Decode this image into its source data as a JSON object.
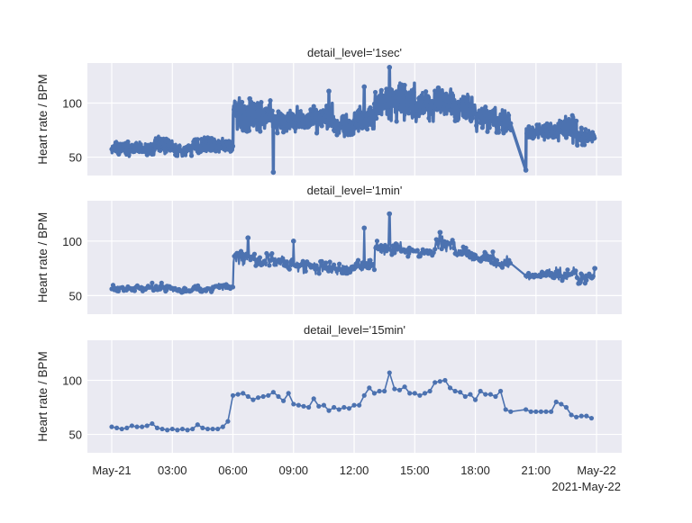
{
  "chart_data": [
    {
      "type": "line",
      "title": "detail_level='1sec'",
      "ylabel": "Heart rate / BPM",
      "ylim": [
        33,
        137
      ],
      "yticks": [
        "50",
        "100"
      ],
      "color": "#4c72b0",
      "band_hours": [
        "00:00",
        "01:00",
        "02:00",
        "03:00",
        "04:00",
        "05:00",
        "06:00",
        "07:00",
        "08:00",
        "09:00",
        "10:00",
        "11:00",
        "12:00",
        "13:00",
        "14:00",
        "15:00",
        "16:00",
        "17:00",
        "18:00",
        "19:00",
        "20:00",
        "21:00",
        "22:00",
        "23:00"
      ],
      "low": [
        50,
        51,
        52,
        50,
        52,
        53,
        70,
        73,
        70,
        70,
        70,
        68,
        72,
        80,
        80,
        80,
        85,
        78,
        72,
        65,
        62,
        65,
        62,
        60
      ],
      "high": [
        66,
        64,
        70,
        63,
        71,
        68,
        108,
        106,
        95,
        98,
        100,
        90,
        98,
        117,
        122,
        112,
        118,
        110,
        106,
        95,
        80,
        85,
        90,
        78
      ],
      "spikes": [
        {
          "x": "06:50",
          "y": 104
        },
        {
          "x": "08:00",
          "y": 36
        },
        {
          "x": "10:45",
          "y": 111
        },
        {
          "x": "13:45",
          "y": 133
        },
        {
          "x": "14:15",
          "y": 113
        },
        {
          "x": "16:10",
          "y": 114
        },
        {
          "x": "20:30",
          "y": 38
        },
        {
          "x": "12:30",
          "y": 115
        }
      ],
      "end": "23:55"
    },
    {
      "type": "line",
      "title": "detail_level='1min'",
      "ylabel": "Heart rate / BPM",
      "ylim": [
        33,
        137
      ],
      "yticks": [
        "50",
        "100"
      ],
      "color": "#4c72b0",
      "band_hours": [
        "00:00",
        "01:00",
        "02:00",
        "03:00",
        "04:00",
        "05:00",
        "06:00",
        "07:00",
        "08:00",
        "09:00",
        "10:00",
        "11:00",
        "12:00",
        "13:00",
        "14:00",
        "15:00",
        "16:00",
        "17:00",
        "18:00",
        "19:00",
        "20:00",
        "21:00",
        "22:00",
        "23:00"
      ],
      "low": [
        53,
        54,
        53,
        52,
        53,
        54,
        76,
        76,
        72,
        70,
        68,
        67,
        72,
        84,
        84,
        84,
        90,
        82,
        78,
        66,
        64,
        64,
        62,
        60
      ],
      "high": [
        60,
        60,
        62,
        58,
        60,
        62,
        95,
        90,
        88,
        84,
        82,
        80,
        86,
        102,
        100,
        96,
        105,
        96,
        92,
        88,
        72,
        76,
        80,
        72
      ],
      "spikes": [
        {
          "x": "06:45",
          "y": 103
        },
        {
          "x": "09:00",
          "y": 100
        },
        {
          "x": "13:45",
          "y": 125
        },
        {
          "x": "12:30",
          "y": 112
        },
        {
          "x": "16:15",
          "y": 108
        },
        {
          "x": "23:55",
          "y": 75
        }
      ],
      "end": "23:55"
    },
    {
      "type": "line",
      "title": "detail_level='15min'",
      "ylabel": "Heart rate / BPM",
      "ylim": [
        33,
        137
      ],
      "yticks": [
        "50",
        "100"
      ],
      "color": "#4c72b0",
      "x": [
        "00:00",
        "00:15",
        "00:30",
        "00:45",
        "01:00",
        "01:15",
        "01:30",
        "01:45",
        "02:00",
        "02:15",
        "02:30",
        "02:45",
        "03:00",
        "03:15",
        "03:30",
        "03:45",
        "04:00",
        "04:15",
        "04:30",
        "04:45",
        "05:00",
        "05:15",
        "05:30",
        "05:45",
        "06:00",
        "06:15",
        "06:30",
        "06:45",
        "07:00",
        "07:15",
        "07:30",
        "07:45",
        "08:00",
        "08:15",
        "08:30",
        "08:45",
        "09:00",
        "09:15",
        "09:30",
        "09:45",
        "10:00",
        "10:15",
        "10:30",
        "10:45",
        "11:00",
        "11:15",
        "11:30",
        "11:45",
        "12:00",
        "12:15",
        "12:30",
        "12:45",
        "13:00",
        "13:15",
        "13:30",
        "13:45",
        "14:00",
        "14:15",
        "14:30",
        "14:45",
        "15:00",
        "15:15",
        "15:30",
        "15:45",
        "16:00",
        "16:15",
        "16:30",
        "16:45",
        "17:00",
        "17:15",
        "17:30",
        "17:45",
        "18:00",
        "18:15",
        "18:30",
        "18:45",
        "19:00",
        "19:15",
        "19:30",
        "19:45",
        "20:30",
        "20:45",
        "21:00",
        "21:15",
        "21:30",
        "21:45",
        "22:00",
        "22:15",
        "22:30",
        "22:45",
        "23:00",
        "23:15",
        "23:30",
        "23:45"
      ],
      "values": [
        57,
        56,
        55,
        56,
        58,
        57,
        57,
        58,
        60,
        56,
        55,
        54,
        55,
        54,
        55,
        54,
        55,
        59,
        56,
        55,
        55,
        55,
        57,
        62,
        86,
        87,
        88,
        85,
        82,
        84,
        85,
        86,
        89,
        85,
        81,
        88,
        78,
        77,
        76,
        75,
        83,
        76,
        77,
        72,
        75,
        73,
        75,
        74,
        77,
        77,
        86,
        93,
        88,
        90,
        90,
        107,
        92,
        91,
        94,
        88,
        88,
        86,
        88,
        90,
        98,
        99,
        100,
        93,
        90,
        89,
        85,
        87,
        82,
        90,
        87,
        87,
        85,
        90,
        73,
        71,
        73,
        71,
        71,
        71,
        71,
        71,
        80,
        78,
        75,
        68,
        66,
        67,
        67,
        65
      ]
    }
  ],
  "xaxis": {
    "ticks": [
      {
        "x": "00:00",
        "label": "May-21"
      },
      {
        "x": "03:00",
        "label": "03:00"
      },
      {
        "x": "06:00",
        "label": "06:00"
      },
      {
        "x": "09:00",
        "label": "09:00"
      },
      {
        "x": "12:00",
        "label": "12:00"
      },
      {
        "x": "15:00",
        "label": "15:00"
      },
      {
        "x": "18:00",
        "label": "18:00"
      },
      {
        "x": "21:00",
        "label": "21:00"
      },
      {
        "x": "24:00",
        "label": "May-22"
      }
    ],
    "offset_label": "2021-May-22"
  },
  "colors": {
    "axes_bg": "#eaeaf2",
    "grid": "#ffffff",
    "series": "#4c72b0"
  }
}
